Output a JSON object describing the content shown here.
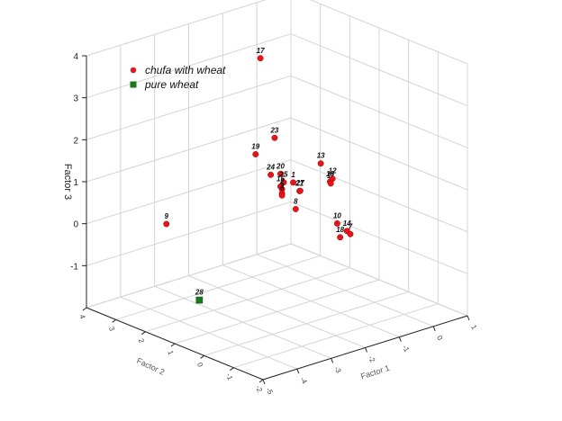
{
  "chart_data": {
    "type": "scatter",
    "dimensions": 3,
    "title": "",
    "xlabel": "Factor 1",
    "ylabel": "Factor 2",
    "zlabel": "Factor 3",
    "xlim": [
      -5,
      1
    ],
    "ylim": [
      -2,
      4
    ],
    "zlim": [
      -2,
      4
    ],
    "x_ticks": [
      "-5",
      "-4",
      "-3",
      "-2",
      "-1",
      "0",
      "1"
    ],
    "y_ticks": [
      "-2",
      "-1",
      "0",
      "1",
      "2",
      "3",
      "4"
    ],
    "z_ticks": [
      "-1",
      "0",
      "1",
      "2",
      "3",
      "4"
    ],
    "grid": true,
    "legend_position": "top-left",
    "colors": {
      "chufa_with_wheat": "#e8141b",
      "pure_wheat": "#1a7a1a"
    },
    "series": [
      {
        "name": "chufa with wheat",
        "marker": "circle",
        "color": "#e8141b",
        "points": [
          {
            "label": "17",
            "x": -0.5,
            "y": 3.3,
            "z": 3.0
          },
          {
            "label": "23",
            "x": -0.6,
            "y": 2.7,
            "z": 1.3
          },
          {
            "label": "19",
            "x": -0.9,
            "y": 3.0,
            "z": 0.9
          },
          {
            "label": "24",
            "x": -0.8,
            "y": 2.6,
            "z": 0.5
          },
          {
            "label": "20",
            "x": -0.6,
            "y": 2.5,
            "z": 0.5
          },
          {
            "label": "25",
            "x": -0.55,
            "y": 2.45,
            "z": 0.3
          },
          {
            "label": "15",
            "x": -0.6,
            "y": 2.5,
            "z": 0.2
          },
          {
            "label": "2",
            "x": -0.6,
            "y": 2.45,
            "z": 0.15
          },
          {
            "label": "3",
            "x": -0.6,
            "y": 2.45,
            "z": 0.05
          },
          {
            "label": "6",
            "x": -0.6,
            "y": 2.45,
            "z": 0.0
          },
          {
            "label": "1",
            "x": -0.4,
            "y": 2.3,
            "z": 0.3
          },
          {
            "label": "21",
            "x": -0.3,
            "y": 2.2,
            "z": 0.1
          },
          {
            "label": "27",
            "x": -0.28,
            "y": 2.2,
            "z": 0.1
          },
          {
            "label": "8",
            "x": -0.5,
            "y": 2.1,
            "z": -0.25
          },
          {
            "label": "13",
            "x": 0.15,
            "y": 2.0,
            "z": 0.7
          },
          {
            "label": "16",
            "x": 0.25,
            "y": 1.8,
            "z": 0.3
          },
          {
            "label": "11",
            "x": 0.27,
            "y": 1.8,
            "z": 0.25
          },
          {
            "label": "12",
            "x": 0.32,
            "y": 1.8,
            "z": 0.35
          },
          {
            "label": "10",
            "x": 0.2,
            "y": 1.5,
            "z": -0.6
          },
          {
            "label": "18",
            "x": 0.2,
            "y": 1.4,
            "z": -0.9
          },
          {
            "label": "14",
            "x": 0.4,
            "y": 1.4,
            "z": -0.8
          },
          {
            "label": "7",
            "x": 0.5,
            "y": 1.4,
            "z": -0.9
          },
          {
            "label": "9",
            "x": -3.0,
            "y": 3.6,
            "z": -0.4
          }
        ]
      },
      {
        "name": "pure wheat",
        "marker": "square",
        "color": "#1a7a1a",
        "points": [
          {
            "label": "28",
            "x": -3.5,
            "y": 1.9,
            "z": -1.6
          }
        ]
      }
    ]
  }
}
